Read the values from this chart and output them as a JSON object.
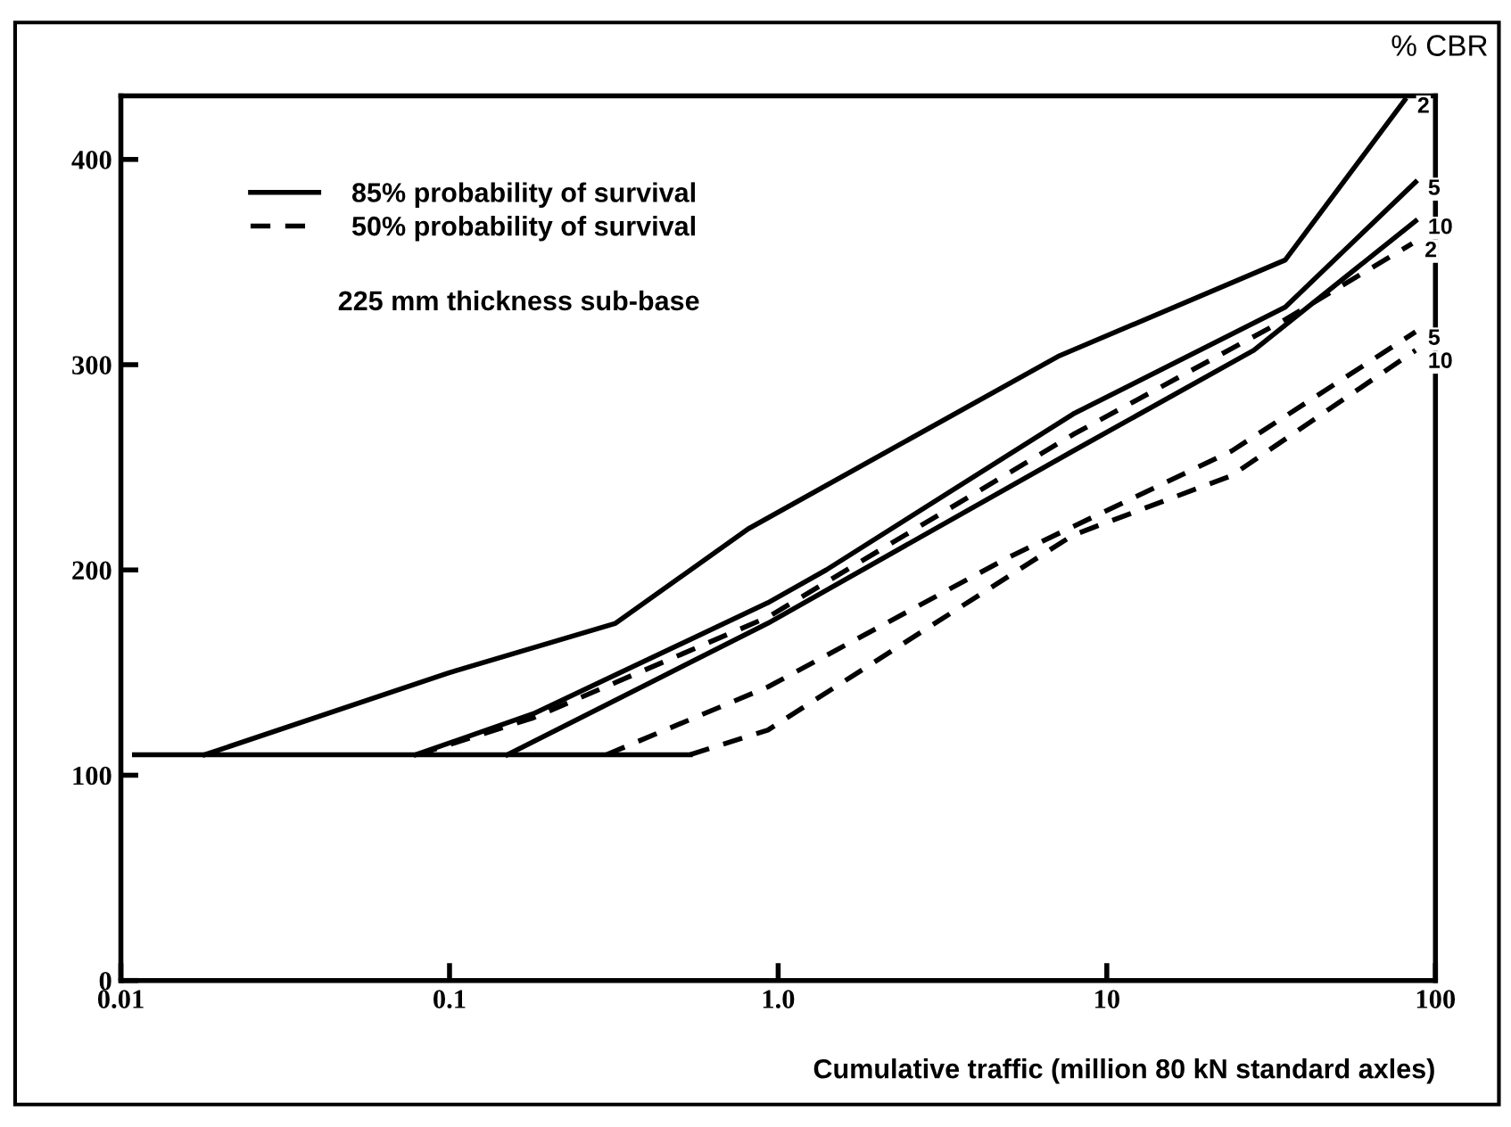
{
  "chart_data": {
    "type": "line",
    "xlabel": "Cumulative traffic (million 80 kN standard axles)",
    "log": "x",
    "xlim": [
      0.01,
      100
    ],
    "xticks": [
      0.01,
      0.1,
      {
        "value": 1,
        "label": "1.0"
      },
      10,
      100
    ],
    "ylim": [
      0,
      431
    ],
    "yticks": [
      0,
      100,
      200,
      300,
      400
    ],
    "grid": false,
    "legend": "top left",
    "marker": "none",
    "annotations": [
      "225 mm thickness sub-base",
      "% CBR",
      {
        "text": "2",
        "x": 80.7,
        "y": 429
      },
      {
        "text": "5",
        "x": 87,
        "y": 389
      },
      {
        "text": "10",
        "x": 87,
        "y": 370
      },
      {
        "text": "2",
        "x": 85,
        "y": 359
      },
      {
        "text": "5",
        "x": 87,
        "y": 316
      },
      {
        "text": "10",
        "x": 87,
        "y": 307
      }
    ],
    "series": [
      {
        "color": "#000000",
        "line_style": "solid",
        "x": [
          0.011,
          0.54
        ],
        "values": [
          110,
          110
        ]
      },
      {
        "name": "85% probability of survival",
        "color": "#000000",
        "line_style": "solid",
        "x": [
          0.018,
          0.1,
          0.32,
          0.81,
          7.1,
          34.9,
          80.7
        ],
        "values": [
          110,
          150,
          174,
          220,
          304,
          351,
          429
        ]
      },
      {
        "color": "#000000",
        "line_style": "solid",
        "x": [
          0.079,
          0.18,
          0.93,
          1.4,
          7.9,
          34.9,
          87
        ],
        "values": [
          110,
          130,
          184,
          200,
          276,
          328,
          389
        ]
      },
      {
        "color": "#000000",
        "line_style": "solid",
        "x": [
          0.15,
          0.93,
          7.9,
          28,
          87
        ],
        "values": [
          110,
          174,
          258,
          307,
          370
        ]
      },
      {
        "name": "50% probability of survival",
        "color": "#000000",
        "line_style": "dashed",
        "x": [
          0.08,
          0.18,
          0.93,
          7.9,
          34.9,
          85
        ],
        "values": [
          110,
          128,
          177,
          266,
          322,
          359
        ]
      },
      {
        "color": "#000000",
        "line_style": "dashed",
        "x": [
          0.3,
          0.93,
          5.0,
          24,
          87
        ],
        "values": [
          110,
          143,
          206,
          258,
          316
        ]
      },
      {
        "color": "#000000",
        "line_style": "dashed",
        "x": [
          0.54,
          0.93,
          7.9,
          24,
          87
        ],
        "values": [
          110,
          122,
          217,
          246,
          307
        ]
      }
    ]
  }
}
